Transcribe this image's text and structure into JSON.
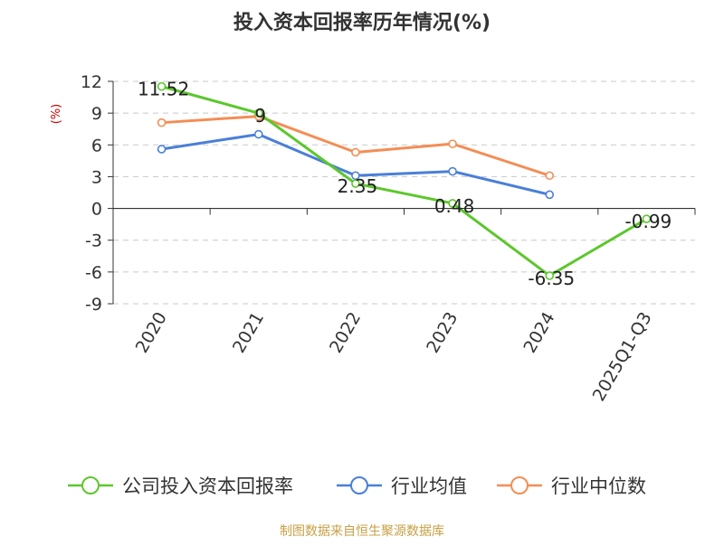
{
  "chart_data": {
    "type": "line",
    "title": "投入资本回报率历年情况(%)",
    "ylabel": "(%)",
    "categories": [
      "2020",
      "2021",
      "2022",
      "2023",
      "2024",
      "2025Q1-Q3"
    ],
    "ylim": [
      -9,
      12
    ],
    "yticks": [
      12,
      9,
      6,
      3,
      0,
      -3,
      -6,
      -9
    ],
    "grid": true,
    "legend_position": "bottom",
    "series": [
      {
        "name": "公司投入资本回报率",
        "color": "#5cc72c",
        "values": [
          11.52,
          9,
          2.35,
          0.48,
          -6.35,
          -0.99
        ],
        "labels": [
          "11.52",
          "9",
          "2.35",
          "0.48",
          "-6.35",
          "-0.99"
        ]
      },
      {
        "name": "行业均值",
        "color": "#4a7fd9",
        "values": [
          5.6,
          7.0,
          3.1,
          3.5,
          1.3,
          null
        ]
      },
      {
        "name": "行业中位数",
        "color": "#f48d55",
        "values": [
          8.1,
          8.7,
          5.3,
          6.1,
          3.1,
          null
        ]
      }
    ]
  },
  "footer": {
    "source": "制图数据来自恒生聚源数据库"
  }
}
